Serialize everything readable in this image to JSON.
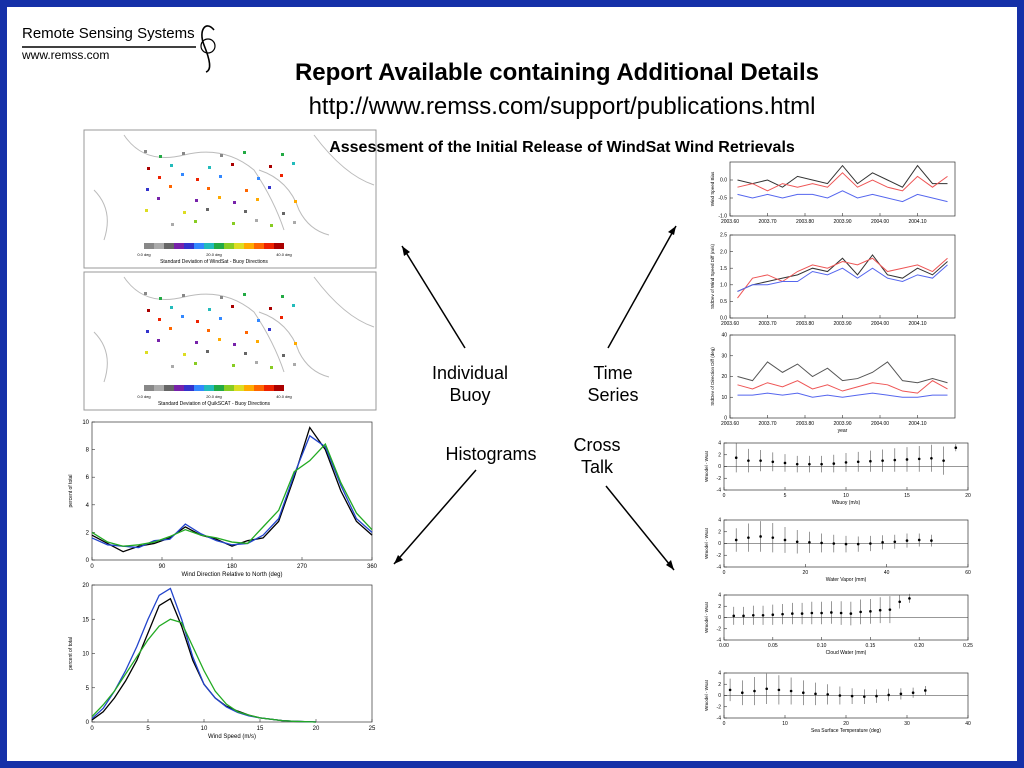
{
  "header": {
    "logo_name": "Remote Sensing Systems",
    "logo_url": "www.remss.com",
    "title": "Report Available containing Additional Details",
    "url": "http://www.remss.com/support/publications.html",
    "subtitle": "Assessment of the Initial Release of WindSat Wind Retrievals"
  },
  "labels": {
    "buoy": "Individual Buoy",
    "series": "Time Series",
    "histograms": "Histograms",
    "cross": "Cross Talk"
  },
  "maps": [
    {
      "caption": "Standard Deviation of WindSat - Buoy Directions",
      "scale": [
        "0.0 deg",
        "20.0 deg",
        "40.0 deg"
      ]
    },
    {
      "caption": "Standard Deviation of QuikSCAT - Buoy Directions",
      "scale": [
        "0.0 deg",
        "20.0 deg",
        "40.0 deg"
      ]
    }
  ],
  "chart_data": [
    {
      "type": "line",
      "xlabel": "Wind Direction Relative to North (deg)",
      "ylabel": "percent of total",
      "xlim": [
        0,
        360
      ],
      "xticks": [
        0,
        90,
        180,
        270,
        360
      ],
      "ylim": [
        0,
        10
      ],
      "yticks": [
        0,
        2,
        4,
        6,
        8,
        10
      ],
      "x": [
        0,
        20,
        40,
        60,
        80,
        100,
        120,
        140,
        160,
        180,
        200,
        220,
        240,
        260,
        280,
        300,
        320,
        340,
        360
      ],
      "series": [
        {
          "color": "#000000",
          "values": [
            1.8,
            1.2,
            0.6,
            1.0,
            1.2,
            1.6,
            2.4,
            1.8,
            1.5,
            1.0,
            1.4,
            1.6,
            2.8,
            6.0,
            9.6,
            8.0,
            5.0,
            2.8,
            1.8
          ]
        },
        {
          "color": "#2244cc",
          "values": [
            1.6,
            1.1,
            1.0,
            0.9,
            1.4,
            1.5,
            2.6,
            1.9,
            1.4,
            1.1,
            1.2,
            1.8,
            3.0,
            6.2,
            9.0,
            8.2,
            5.4,
            3.0,
            2.0
          ]
        },
        {
          "color": "#22aa22",
          "values": [
            2.0,
            1.3,
            1.0,
            1.1,
            1.3,
            1.7,
            2.2,
            1.8,
            1.6,
            1.3,
            1.2,
            2.4,
            3.6,
            6.4,
            7.2,
            8.4,
            5.6,
            3.4,
            2.2
          ]
        }
      ]
    },
    {
      "type": "line",
      "xlabel": "Wind Speed (m/s)",
      "ylabel": "percent of total",
      "xlim": [
        0,
        25
      ],
      "xticks": [
        0,
        5,
        10,
        15,
        20,
        25
      ],
      "ylim": [
        0,
        20
      ],
      "yticks": [
        0,
        5,
        10,
        15,
        20
      ],
      "x": [
        0,
        1,
        2,
        3,
        4,
        5,
        6,
        7,
        8,
        9,
        10,
        11,
        12,
        13,
        14,
        15,
        16,
        17,
        18,
        19,
        20
      ],
      "series": [
        {
          "color": "#000000",
          "values": [
            0.3,
            1.5,
            3.5,
            6,
            9,
            13,
            17,
            18,
            14,
            9,
            5.5,
            3.5,
            2.3,
            1.6,
            1.0,
            0.6,
            0.4,
            0.2,
            0.1,
            0.05,
            0
          ]
        },
        {
          "color": "#2244cc",
          "values": [
            0.5,
            2,
            4.5,
            7.5,
            11,
            15,
            18.5,
            19.5,
            15,
            9.5,
            5.5,
            3.5,
            2.2,
            1.4,
            0.9,
            0.6,
            0.4,
            0.2,
            0.1,
            0.05,
            0
          ]
        },
        {
          "color": "#22aa22",
          "values": [
            0.8,
            2.5,
            4.5,
            7,
            9.5,
            12,
            14,
            15,
            14.5,
            11,
            7.5,
            4.5,
            2.6,
            1.5,
            1.0,
            0.6,
            0.4,
            0.2,
            0.1,
            0.05,
            0
          ]
        }
      ]
    },
    {
      "type": "line",
      "ylabel": "Wind Speed Bias",
      "xlim": [
        2003.6,
        2004.2
      ],
      "xticks": [
        {
          "value": 2003.6,
          "label": "2003.60"
        },
        {
          "value": 2003.7,
          "label": "2003.70"
        },
        {
          "value": 2003.8,
          "label": "2003.80"
        },
        {
          "value": 2003.9,
          "label": "2003.90"
        },
        {
          "value": 2004.0,
          "label": "2004.00"
        },
        {
          "value": 2004.1,
          "label": "2004.10"
        }
      ],
      "ylim": [
        -1,
        0.5
      ],
      "yticks": [
        {
          "value": -1,
          "label": "-1.0"
        },
        {
          "value": -0.5,
          "label": "-0.5"
        },
        {
          "value": 0,
          "label": "0.0"
        }
      ],
      "x": [
        2003.62,
        2003.66,
        2003.7,
        2003.74,
        2003.78,
        2003.82,
        2003.86,
        2003.9,
        2003.94,
        2003.98,
        2004.02,
        2004.06,
        2004.1,
        2004.14,
        2004.18
      ],
      "series": [
        {
          "color": "#333333",
          "values": [
            0.0,
            -0.1,
            0.0,
            -0.2,
            0.1,
            0.0,
            -0.1,
            0.4,
            -0.1,
            0.2,
            0.0,
            -0.2,
            0.4,
            -0.1,
            -0.1
          ]
        },
        {
          "color": "#ee5555",
          "values": [
            -0.2,
            -0.1,
            -0.3,
            -0.1,
            -0.2,
            -0.1,
            -0.2,
            0.2,
            -0.2,
            0.0,
            -0.2,
            -0.3,
            0.1,
            -0.2,
            0.1
          ]
        },
        {
          "color": "#5566ee",
          "values": [
            -0.4,
            -0.5,
            -0.4,
            -0.5,
            -0.4,
            -0.4,
            -0.5,
            -0.3,
            -0.5,
            -0.4,
            -0.5,
            -0.6,
            -0.4,
            -0.5,
            -0.6
          ]
        }
      ]
    },
    {
      "type": "line",
      "ylabel": "StdDev of Wind Speed Diff (m/s)",
      "xlim": [
        2003.6,
        2004.2
      ],
      "xticks": [
        {
          "value": 2003.6,
          "label": "2003.60"
        },
        {
          "value": 2003.7,
          "label": "2003.70"
        },
        {
          "value": 2003.8,
          "label": "2003.80"
        },
        {
          "value": 2003.9,
          "label": "2003.90"
        },
        {
          "value": 2004.0,
          "label": "2004.00"
        },
        {
          "value": 2004.1,
          "label": "2004.10"
        }
      ],
      "ylim": [
        0,
        2.5
      ],
      "yticks": [
        {
          "value": 0,
          "label": "0.0"
        },
        {
          "value": 0.5,
          "label": "0.5"
        },
        {
          "value": 1,
          "label": "1.0"
        },
        {
          "value": 1.5,
          "label": "1.5"
        },
        {
          "value": 2,
          "label": "2.0"
        },
        {
          "value": 2.5,
          "label": "2.5"
        }
      ],
      "x": [
        2003.62,
        2003.66,
        2003.7,
        2003.74,
        2003.78,
        2003.82,
        2003.86,
        2003.9,
        2003.94,
        2003.98,
        2004.02,
        2004.06,
        2004.1,
        2004.14,
        2004.18
      ],
      "series": [
        {
          "color": "#333333",
          "values": [
            0.8,
            1.0,
            1.1,
            1.2,
            1.3,
            1.5,
            1.4,
            1.8,
            1.3,
            1.9,
            1.3,
            1.2,
            1.5,
            1.3,
            1.7
          ]
        },
        {
          "color": "#ee5555",
          "values": [
            0.6,
            1.2,
            1.3,
            1.1,
            1.4,
            1.6,
            1.5,
            1.7,
            1.6,
            1.8,
            1.4,
            1.5,
            1.6,
            1.4,
            1.8
          ]
        },
        {
          "color": "#5566ee",
          "values": [
            0.8,
            1.0,
            1.0,
            1.1,
            1.1,
            1.4,
            1.3,
            1.5,
            1.2,
            1.5,
            1.2,
            1.1,
            1.3,
            1.2,
            1.6
          ]
        }
      ]
    },
    {
      "type": "line",
      "xlabel": "year",
      "ylabel": "StdDev of Direction Diff (deg)",
      "xlim": [
        2003.6,
        2004.2
      ],
      "xticks": [
        {
          "value": 2003.6,
          "label": "2003.60"
        },
        {
          "value": 2003.7,
          "label": "2003.70"
        },
        {
          "value": 2003.8,
          "label": "2003.80"
        },
        {
          "value": 2003.9,
          "label": "2003.90"
        },
        {
          "value": 2004.0,
          "label": "2004.00"
        },
        {
          "value": 2004.1,
          "label": "2004.10"
        }
      ],
      "ylim": [
        0,
        40
      ],
      "yticks": [
        0,
        10,
        20,
        30,
        40
      ],
      "x": [
        2003.62,
        2003.66,
        2003.7,
        2003.74,
        2003.78,
        2003.82,
        2003.86,
        2003.9,
        2003.94,
        2003.98,
        2004.02,
        2004.06,
        2004.1,
        2004.14,
        2004.18
      ],
      "series": [
        {
          "color": "#555555",
          "values": [
            20,
            18,
            27,
            22,
            26,
            20,
            24,
            18,
            19,
            22,
            27,
            18,
            17,
            19,
            17
          ]
        },
        {
          "color": "#ee5555",
          "values": [
            16,
            14,
            17,
            15,
            18,
            14,
            16,
            13,
            15,
            17,
            16,
            13,
            12,
            18,
            14
          ]
        },
        {
          "color": "#5566ee",
          "values": [
            11,
            11,
            12,
            11,
            12,
            10,
            11,
            10,
            11,
            12,
            11,
            10,
            10,
            11,
            11
          ]
        }
      ]
    },
    {
      "type": "errorbar",
      "xlabel": "Wbuoy (m/s)",
      "ylabel": "Wmodel - Wsat",
      "xlim": [
        0,
        20
      ],
      "xticks": [
        0,
        5,
        10,
        15,
        20
      ],
      "ylim": [
        -4,
        4
      ],
      "yticks": [
        -4,
        -2,
        0,
        2,
        4
      ],
      "x": [
        1,
        2,
        3,
        4,
        5,
        6,
        7,
        8,
        9,
        10,
        11,
        12,
        13,
        14,
        15,
        16,
        17,
        18,
        19
      ],
      "values": [
        1.5,
        1.0,
        1.0,
        0.8,
        0.6,
        0.4,
        0.4,
        0.4,
        0.5,
        0.7,
        0.8,
        0.9,
        1.0,
        1.1,
        1.2,
        1.3,
        1.4,
        1.0,
        3.2
      ],
      "errors": [
        2.5,
        2.0,
        1.8,
        1.6,
        1.5,
        1.4,
        1.4,
        1.4,
        1.5,
        1.6,
        1.7,
        1.8,
        1.9,
        2.0,
        2.1,
        2.2,
        2.3,
        2.4,
        0.6
      ]
    },
    {
      "type": "errorbar",
      "xlabel": "Water Vapor (mm)",
      "ylabel": "Wmodel - Wsat",
      "xlim": [
        0,
        60
      ],
      "xticks": [
        0,
        20,
        40,
        60
      ],
      "ylim": [
        -4,
        4
      ],
      "yticks": [
        -4,
        -2,
        0,
        2,
        4
      ],
      "x": [
        3,
        6,
        9,
        12,
        15,
        18,
        21,
        24,
        27,
        30,
        33,
        36,
        39,
        42,
        45,
        48,
        51
      ],
      "values": [
        0.6,
        1.0,
        1.2,
        1.0,
        0.6,
        0.3,
        0.2,
        0.1,
        0.0,
        -0.1,
        -0.1,
        0.0,
        0.2,
        0.3,
        0.5,
        0.6,
        0.5
      ],
      "errors": [
        2.0,
        2.4,
        2.6,
        2.5,
        2.2,
        2.0,
        1.8,
        1.6,
        1.5,
        1.4,
        1.3,
        1.3,
        1.2,
        1.2,
        1.2,
        1.1,
        1.0
      ]
    },
    {
      "type": "errorbar",
      "xlabel": "Cloud Water (mm)",
      "ylabel": "Wmodel - Wsat",
      "xlim": [
        0,
        0.25
      ],
      "xticks": [
        {
          "value": 0,
          "label": "0.00"
        },
        {
          "value": 0.05,
          "label": "0.05"
        },
        {
          "value": 0.1,
          "label": "0.10"
        },
        {
          "value": 0.15,
          "label": "0.15"
        },
        {
          "value": 0.2,
          "label": "0.20"
        },
        {
          "value": 0.25,
          "label": "0.25"
        }
      ],
      "ylim": [
        -4,
        4
      ],
      "yticks": [
        -4,
        -2,
        0,
        2,
        4
      ],
      "x": [
        0.01,
        0.02,
        0.03,
        0.04,
        0.05,
        0.06,
        0.07,
        0.08,
        0.09,
        0.1,
        0.11,
        0.12,
        0.13,
        0.14,
        0.15,
        0.16,
        0.17,
        0.18,
        0.19
      ],
      "values": [
        0.3,
        0.3,
        0.4,
        0.4,
        0.5,
        0.6,
        0.7,
        0.7,
        0.8,
        0.8,
        0.9,
        0.8,
        0.7,
        1.0,
        1.1,
        1.3,
        1.4,
        2.8,
        3.4
      ],
      "errors": [
        1.6,
        1.6,
        1.7,
        1.7,
        1.8,
        1.8,
        1.9,
        1.9,
        2.0,
        2.0,
        2.0,
        2.1,
        2.1,
        2.2,
        2.2,
        2.3,
        2.4,
        1.2,
        0.8
      ]
    },
    {
      "type": "errorbar",
      "xlabel": "Sea Surface Temperature (deg)",
      "ylabel": "Wmodel - Wsat",
      "xlim": [
        0,
        40
      ],
      "xticks": [
        0,
        10,
        20,
        30,
        40
      ],
      "ylim": [
        -4,
        4
      ],
      "yticks": [
        -4,
        -2,
        0,
        2,
        4
      ],
      "x": [
        1,
        3,
        5,
        7,
        9,
        11,
        13,
        15,
        17,
        19,
        21,
        23,
        25,
        27,
        29,
        31,
        33
      ],
      "values": [
        1.0,
        0.5,
        0.8,
        1.2,
        1.0,
        0.8,
        0.5,
        0.3,
        0.2,
        0.0,
        -0.1,
        -0.2,
        -0.1,
        0.1,
        0.3,
        0.5,
        0.9
      ],
      "errors": [
        2.0,
        2.2,
        2.5,
        2.7,
        2.6,
        2.4,
        2.2,
        2.0,
        1.8,
        1.6,
        1.4,
        1.3,
        1.2,
        1.1,
        1.0,
        0.9,
        0.8
      ]
    }
  ]
}
